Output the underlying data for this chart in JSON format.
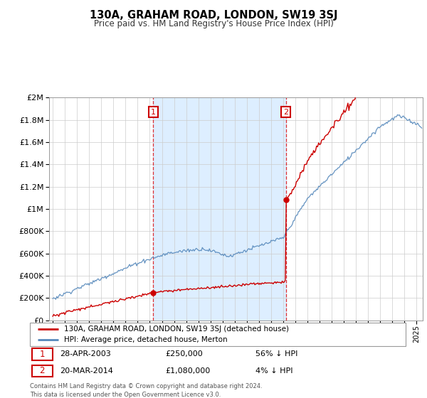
{
  "title": "130A, GRAHAM ROAD, LONDON, SW19 3SJ",
  "subtitle": "Price paid vs. HM Land Registry's House Price Index (HPI)",
  "property_color": "#cc0000",
  "hpi_color": "#5588bb",
  "shade_color": "#ddeeff",
  "sale1_year": 2003.29,
  "sale1_price": 250000,
  "sale2_year": 2014.21,
  "sale2_price": 1080000,
  "legend_property": "130A, GRAHAM ROAD, LONDON, SW19 3SJ (detached house)",
  "legend_hpi": "HPI: Average price, detached house, Merton",
  "sale1_date_str": "28-APR-2003",
  "sale1_price_str": "£250,000",
  "sale1_hpi_str": "56% ↓ HPI",
  "sale2_date_str": "20-MAR-2014",
  "sale2_price_str": "£1,080,000",
  "sale2_hpi_str": "4% ↓ HPI",
  "footer": "Contains HM Land Registry data © Crown copyright and database right 2024.\nThis data is licensed under the Open Government Licence v3.0.",
  "ylim": [
    0,
    2000000
  ],
  "yticks": [
    0,
    200000,
    400000,
    600000,
    800000,
    1000000,
    1200000,
    1400000,
    1600000,
    1800000,
    2000000
  ],
  "xstart": 1995,
  "xend": 2025,
  "background_color": "#ffffff",
  "grid_color": "#cccccc"
}
